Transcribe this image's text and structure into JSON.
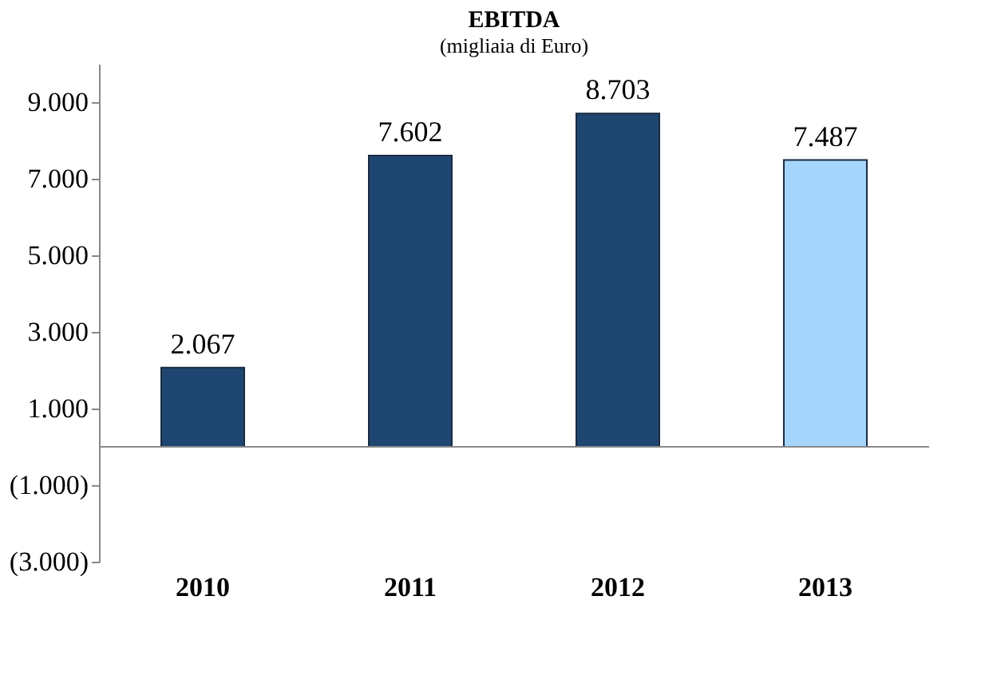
{
  "chart_data": {
    "type": "bar",
    "title": "EBITDA",
    "subtitle": "(migliaia di Euro)",
    "categories": [
      "2010",
      "2011",
      "2012",
      "2013"
    ],
    "values": [
      2067,
      7602,
      8703,
      7487
    ],
    "colors": [
      "#1f4670",
      "#1f4670",
      "#1f4670",
      "#a6d5fb"
    ],
    "value_labels": [
      "2.067",
      "7.602",
      "8.703",
      "7.487"
    ],
    "ylim": [
      -3000,
      10000
    ],
    "yticks": [
      {
        "value": -3000,
        "label": "(3.000)"
      },
      {
        "value": -1000,
        "label": "(1.000)"
      },
      {
        "value": 1000,
        "label": "1.000"
      },
      {
        "value": 3000,
        "label": "3.000"
      },
      {
        "value": 5000,
        "label": "5.000"
      },
      {
        "value": 7000,
        "label": "7.000"
      },
      {
        "value": 9000,
        "label": "9.000"
      }
    ],
    "grid": false
  }
}
